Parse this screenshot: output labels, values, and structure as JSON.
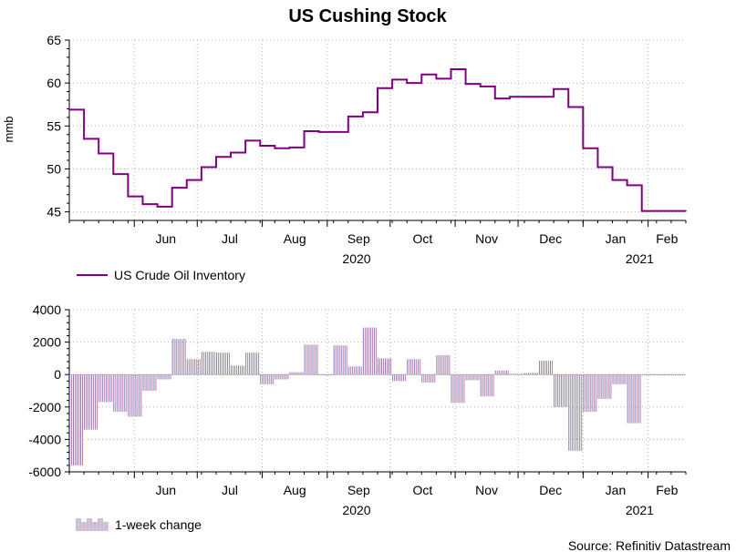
{
  "chart_data": [
    {
      "type": "line",
      "title": "US Cushing Stock",
      "ylabel": "mmb",
      "xlabel": "",
      "ylim": [
        44,
        65
      ],
      "yticks": [
        45,
        50,
        55,
        60,
        65
      ],
      "x_start": "2020-05-01",
      "x_end": "2021-02-19",
      "month_labels": [
        "Jun",
        "Jul",
        "Aug",
        "Sep",
        "Oct",
        "Nov",
        "Dec",
        "Jan",
        "Feb"
      ],
      "year_labels": [
        "2020",
        "2021"
      ],
      "grid": true,
      "legend": "bottom-left",
      "color": "#800080",
      "series": [
        {
          "name": "US Crude Oil Inventory",
          "x": [
            "2020-05-01",
            "2020-05-08",
            "2020-05-15",
            "2020-05-22",
            "2020-05-29",
            "2020-06-05",
            "2020-06-12",
            "2020-06-19",
            "2020-06-26",
            "2020-07-03",
            "2020-07-10",
            "2020-07-17",
            "2020-07-24",
            "2020-07-31",
            "2020-08-07",
            "2020-08-14",
            "2020-08-21",
            "2020-08-28",
            "2020-09-04",
            "2020-09-11",
            "2020-09-18",
            "2020-09-25",
            "2020-10-02",
            "2020-10-09",
            "2020-10-16",
            "2020-10-23",
            "2020-10-30",
            "2020-11-06",
            "2020-11-13",
            "2020-11-20",
            "2020-11-27",
            "2020-12-04",
            "2020-12-11",
            "2020-12-18",
            "2020-12-25",
            "2021-01-01",
            "2021-01-08",
            "2021-01-15",
            "2021-01-22",
            "2021-01-29",
            "2021-02-05",
            "2021-02-12",
            "2021-02-19"
          ],
          "values": [
            56.9,
            53.5,
            51.8,
            49.4,
            46.8,
            45.9,
            45.6,
            47.8,
            48.7,
            50.2,
            51.4,
            51.9,
            53.3,
            52.7,
            52.4,
            52.5,
            54.4,
            54.3,
            54.3,
            56.1,
            56.6,
            59.4,
            60.4,
            60.0,
            61.0,
            60.5,
            61.6,
            59.9,
            59.6,
            58.2,
            58.4,
            58.4,
            58.4,
            59.3,
            57.2,
            52.4,
            50.2,
            48.7,
            48.1,
            45.1,
            45.1,
            45.1,
            45.1
          ]
        }
      ]
    },
    {
      "type": "bar",
      "title": "",
      "ylabel": "",
      "xlabel": "",
      "ylim": [
        -6000,
        4000
      ],
      "yticks": [
        -6000,
        -4000,
        -2000,
        0,
        2000,
        4000
      ],
      "x_start": "2020-05-01",
      "x_end": "2021-02-19",
      "month_labels": [
        "Jun",
        "Jul",
        "Aug",
        "Sep",
        "Oct",
        "Nov",
        "Dec",
        "Jan",
        "Feb"
      ],
      "year_labels": [
        "2020",
        "2021"
      ],
      "grid": true,
      "legend": "bottom-left",
      "colors": [
        "#8080c0",
        "#c080a0"
      ],
      "series": [
        {
          "name": "1-week change",
          "x": [
            "2020-05-01",
            "2020-05-08",
            "2020-05-15",
            "2020-05-22",
            "2020-05-29",
            "2020-06-05",
            "2020-06-12",
            "2020-06-19",
            "2020-06-26",
            "2020-07-03",
            "2020-07-10",
            "2020-07-17",
            "2020-07-24",
            "2020-07-31",
            "2020-08-07",
            "2020-08-14",
            "2020-08-21",
            "2020-08-28",
            "2020-09-04",
            "2020-09-11",
            "2020-09-18",
            "2020-09-25",
            "2020-10-02",
            "2020-10-09",
            "2020-10-16",
            "2020-10-23",
            "2020-10-30",
            "2020-11-06",
            "2020-11-13",
            "2020-11-20",
            "2020-11-27",
            "2020-12-04",
            "2020-12-11",
            "2020-12-18",
            "2020-12-25",
            "2021-01-01",
            "2021-01-08",
            "2021-01-15",
            "2021-01-22",
            "2021-01-29",
            "2021-02-05",
            "2021-02-12"
          ],
          "values": [
            -5600,
            -3400,
            -1700,
            -2300,
            -2600,
            -1000,
            -300,
            2200,
            950,
            1400,
            1350,
            550,
            1350,
            -600,
            -300,
            150,
            1850,
            -50,
            1800,
            500,
            2900,
            1000,
            -400,
            950,
            -500,
            1200,
            -1750,
            -350,
            -1350,
            250,
            50,
            100,
            850,
            -2000,
            -4700,
            -2300,
            -1500,
            -600,
            -3000,
            -50,
            -50,
            -50
          ]
        }
      ]
    }
  ],
  "source": "Source: Refinitiv Datastream"
}
